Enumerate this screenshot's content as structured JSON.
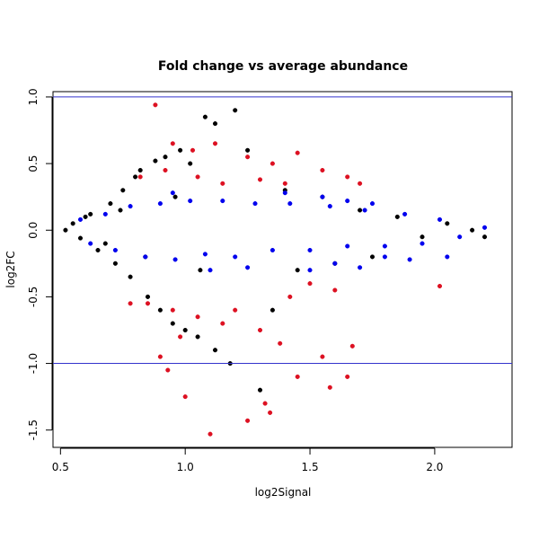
{
  "chart_data": {
    "type": "scatter",
    "title": "Fold change vs average abundance",
    "xlabel": "log2Signal",
    "ylabel": "log2FC",
    "xlim": [
      0.47,
      2.31
    ],
    "ylim": [
      -1.63,
      1.04
    ],
    "xticks": [
      0.5,
      1.0,
      1.5,
      2.0
    ],
    "xtick_labels": [
      "0.5",
      "1.0",
      "1.5",
      "2.0"
    ],
    "yticks": [
      -1.5,
      -1.0,
      -0.5,
      0.0,
      0.5,
      1.0
    ],
    "ytick_labels": [
      "-1.5",
      "-1.0",
      "-0.5",
      "0.0",
      "0.5",
      "1.0"
    ],
    "hlines": [
      1.0,
      -1.0
    ],
    "hline_color": "#3333cc",
    "grid": false,
    "legend": "none",
    "series": [
      {
        "color": "#000000",
        "points": [
          [
            0.52,
            0.0
          ],
          [
            0.55,
            0.05
          ],
          [
            0.58,
            -0.06
          ],
          [
            0.62,
            0.12
          ],
          [
            0.65,
            -0.15
          ],
          [
            0.7,
            0.2
          ],
          [
            0.72,
            -0.25
          ],
          [
            0.75,
            0.3
          ],
          [
            0.78,
            -0.35
          ],
          [
            0.8,
            0.4
          ],
          [
            0.82,
            0.45
          ],
          [
            0.85,
            -0.5
          ],
          [
            0.88,
            0.52
          ],
          [
            0.9,
            -0.6
          ],
          [
            0.92,
            0.55
          ],
          [
            0.95,
            -0.7
          ],
          [
            0.98,
            0.6
          ],
          [
            1.0,
            -0.75
          ],
          [
            1.02,
            0.5
          ],
          [
            1.05,
            -0.8
          ],
          [
            1.08,
            0.85
          ],
          [
            1.12,
            0.8
          ],
          [
            1.2,
            0.9
          ],
          [
            1.12,
            -0.9
          ],
          [
            1.18,
            -1.0
          ],
          [
            1.3,
            -1.2
          ],
          [
            1.25,
            0.6
          ],
          [
            1.35,
            -0.6
          ],
          [
            1.4,
            0.3
          ],
          [
            1.45,
            -0.3
          ],
          [
            1.55,
            0.25
          ],
          [
            1.6,
            -0.25
          ],
          [
            1.7,
            0.15
          ],
          [
            1.75,
            -0.2
          ],
          [
            1.85,
            0.1
          ],
          [
            1.95,
            -0.05
          ],
          [
            2.05,
            0.05
          ],
          [
            2.15,
            0.0
          ],
          [
            2.2,
            -0.05
          ],
          [
            0.6,
            0.1
          ],
          [
            0.68,
            -0.1
          ],
          [
            0.74,
            0.15
          ],
          [
            0.84,
            -0.2
          ],
          [
            0.96,
            0.25
          ],
          [
            1.06,
            -0.3
          ]
        ]
      },
      {
        "color": "#dd1122",
        "points": [
          [
            0.88,
            0.94
          ],
          [
            1.03,
            0.6
          ],
          [
            0.95,
            0.65
          ],
          [
            1.12,
            0.65
          ],
          [
            1.25,
            0.55
          ],
          [
            1.35,
            0.5
          ],
          [
            1.45,
            0.58
          ],
          [
            1.55,
            0.45
          ],
          [
            1.65,
            0.4
          ],
          [
            0.82,
            0.4
          ],
          [
            0.92,
            0.45
          ],
          [
            1.05,
            0.4
          ],
          [
            1.15,
            0.35
          ],
          [
            1.3,
            0.38
          ],
          [
            1.4,
            0.35
          ],
          [
            1.7,
            0.35
          ],
          [
            0.85,
            -0.55
          ],
          [
            0.95,
            -0.6
          ],
          [
            1.05,
            -0.65
          ],
          [
            1.15,
            -0.7
          ],
          [
            1.3,
            -0.75
          ],
          [
            1.38,
            -0.85
          ],
          [
            0.9,
            -0.95
          ],
          [
            0.93,
            -1.05
          ],
          [
            1.0,
            -1.25
          ],
          [
            1.1,
            -1.53
          ],
          [
            1.25,
            -1.43
          ],
          [
            1.32,
            -1.3
          ],
          [
            1.34,
            -1.37
          ],
          [
            1.45,
            -1.1
          ],
          [
            1.55,
            -0.95
          ],
          [
            1.58,
            -1.18
          ],
          [
            1.65,
            -1.1
          ],
          [
            1.67,
            -0.87
          ],
          [
            2.02,
            -0.42
          ],
          [
            1.6,
            -0.45
          ],
          [
            1.5,
            -0.4
          ],
          [
            0.78,
            -0.55
          ],
          [
            1.2,
            -0.6
          ],
          [
            1.42,
            -0.5
          ],
          [
            0.98,
            -0.8
          ]
        ]
      },
      {
        "color": "#0000ee",
        "points": [
          [
            0.58,
            0.08
          ],
          [
            0.62,
            -0.1
          ],
          [
            0.68,
            0.12
          ],
          [
            0.72,
            -0.15
          ],
          [
            0.78,
            0.18
          ],
          [
            0.84,
            -0.2
          ],
          [
            0.9,
            0.2
          ],
          [
            0.96,
            -0.22
          ],
          [
            1.02,
            0.22
          ],
          [
            1.08,
            -0.18
          ],
          [
            1.15,
            0.22
          ],
          [
            1.2,
            -0.2
          ],
          [
            1.28,
            0.2
          ],
          [
            1.35,
            -0.15
          ],
          [
            1.42,
            0.2
          ],
          [
            1.5,
            -0.15
          ],
          [
            1.58,
            0.18
          ],
          [
            1.65,
            -0.12
          ],
          [
            1.72,
            0.15
          ],
          [
            1.8,
            -0.12
          ],
          [
            1.88,
            0.12
          ],
          [
            1.95,
            -0.1
          ],
          [
            2.02,
            0.08
          ],
          [
            2.1,
            -0.05
          ],
          [
            1.5,
            -0.3
          ],
          [
            1.6,
            -0.25
          ],
          [
            1.7,
            -0.28
          ],
          [
            1.8,
            -0.2
          ],
          [
            1.9,
            -0.22
          ],
          [
            1.4,
            0.28
          ],
          [
            1.55,
            0.25
          ],
          [
            1.65,
            0.22
          ],
          [
            1.75,
            0.2
          ],
          [
            0.95,
            0.28
          ],
          [
            1.1,
            -0.3
          ],
          [
            1.25,
            -0.28
          ],
          [
            2.05,
            -0.2
          ],
          [
            2.2,
            0.02
          ]
        ]
      }
    ]
  }
}
